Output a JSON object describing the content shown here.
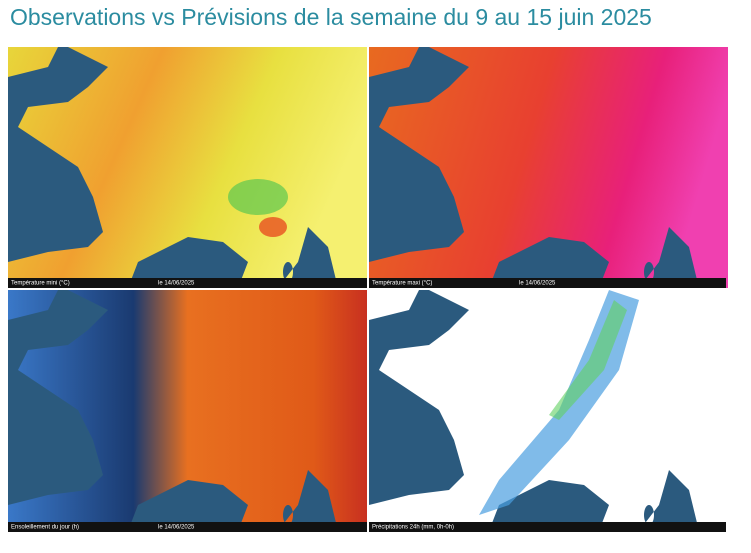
{
  "title": "Observations vs Prévisions de la semaine du 9 au 15 juin 2025",
  "panels": [
    {
      "caption": "Température mini (°C)",
      "date": "le 14/06/2025"
    },
    {
      "caption": "Température maxi (°C)",
      "date": "le 14/06/2025"
    },
    {
      "caption": "Ensoleillement du jour (h)",
      "date": "le 14/06/2025"
    },
    {
      "caption": "Précipitations 24h (mm, 0h-0h)"
    }
  ]
}
